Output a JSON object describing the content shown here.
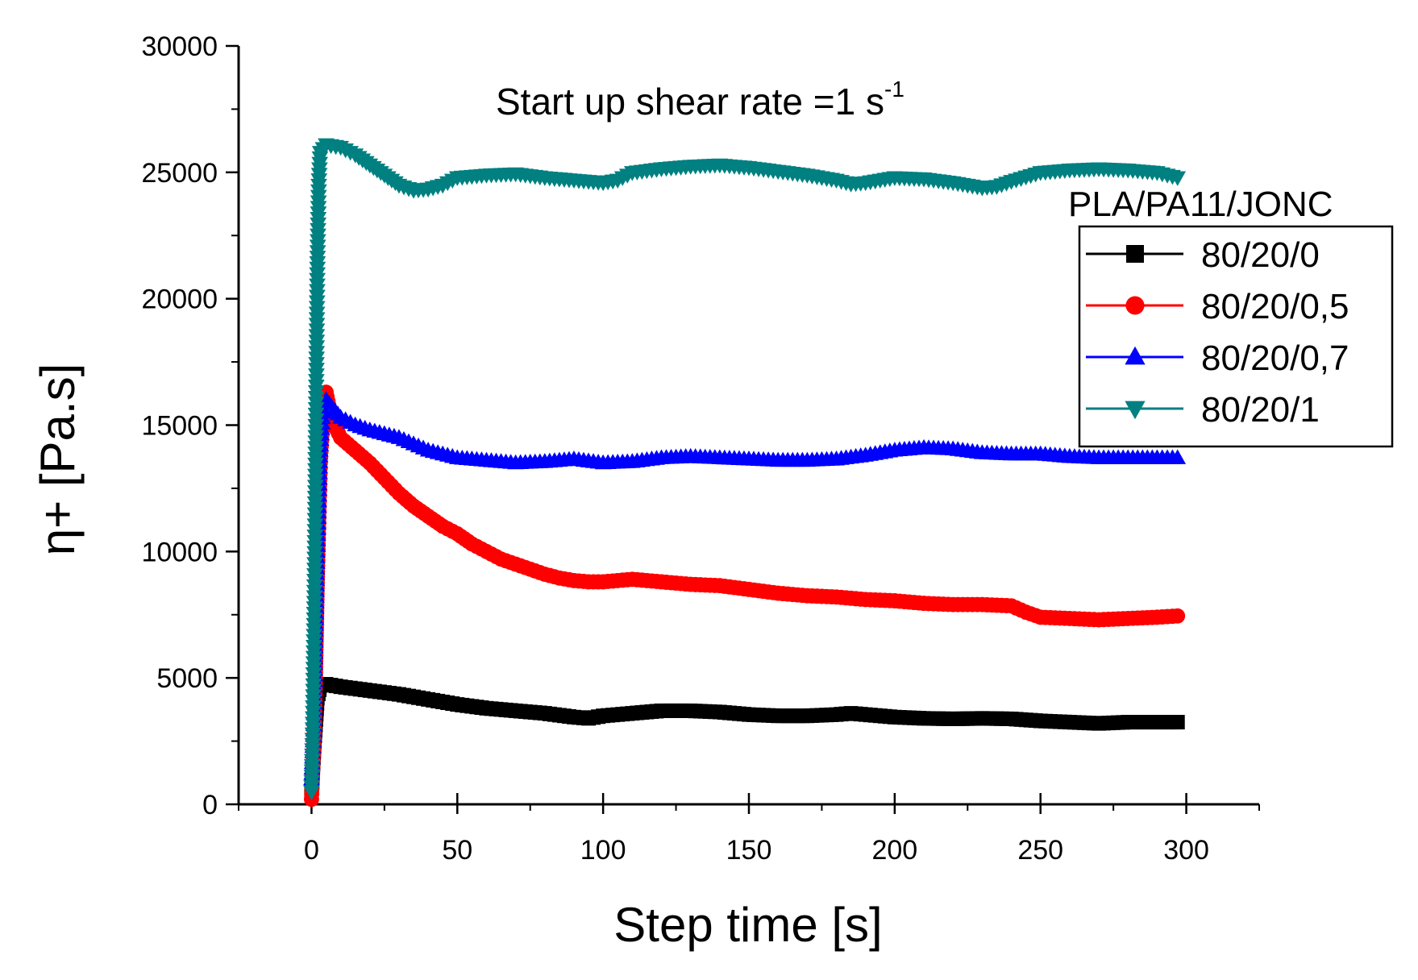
{
  "chart_data": {
    "type": "scatter",
    "title": "Start up shear rate =1 s",
    "title_superscript": "-1",
    "xlabel": "Step time [s]",
    "ylabel": "η+ [Pa.s]",
    "xlim": [
      -25,
      325
    ],
    "ylim": [
      0,
      30000
    ],
    "x_ticks": [
      0,
      50,
      100,
      150,
      200,
      250,
      300
    ],
    "y_ticks": [
      0,
      5000,
      10000,
      15000,
      20000,
      25000,
      30000
    ],
    "x_tick_labels": [
      "0",
      "50",
      "100",
      "150",
      "200",
      "250",
      "300"
    ],
    "y_tick_labels": [
      "0",
      "5000",
      "10000",
      "15000",
      "20000",
      "25000",
      "30000"
    ],
    "legend_title": "PLA/PA11/JONC",
    "legend_position": "top-right",
    "grid": false,
    "series": [
      {
        "name": "80/20/0",
        "color": "#000000",
        "marker": "square",
        "points": [
          [
            0,
            500
          ],
          [
            1,
            2500
          ],
          [
            2,
            4200
          ],
          [
            3,
            4700
          ],
          [
            5,
            4750
          ],
          [
            10,
            4650
          ],
          [
            20,
            4500
          ],
          [
            30,
            4350
          ],
          [
            40,
            4150
          ],
          [
            50,
            3950
          ],
          [
            60,
            3800
          ],
          [
            70,
            3700
          ],
          [
            80,
            3600
          ],
          [
            90,
            3450
          ],
          [
            95,
            3400
          ],
          [
            100,
            3500
          ],
          [
            110,
            3600
          ],
          [
            120,
            3700
          ],
          [
            130,
            3700
          ],
          [
            140,
            3650
          ],
          [
            150,
            3550
          ],
          [
            160,
            3500
          ],
          [
            170,
            3500
          ],
          [
            180,
            3550
          ],
          [
            185,
            3600
          ],
          [
            190,
            3550
          ],
          [
            200,
            3450
          ],
          [
            210,
            3400
          ],
          [
            220,
            3380
          ],
          [
            230,
            3400
          ],
          [
            240,
            3380
          ],
          [
            250,
            3300
          ],
          [
            260,
            3250
          ],
          [
            270,
            3200
          ],
          [
            280,
            3250
          ],
          [
            290,
            3250
          ],
          [
            297,
            3250
          ]
        ]
      },
      {
        "name": "80/20/0,5",
        "color": "#ff0000",
        "marker": "circle",
        "points": [
          [
            0,
            200
          ],
          [
            1,
            3000
          ],
          [
            2,
            9000
          ],
          [
            3,
            13500
          ],
          [
            4,
            15500
          ],
          [
            5,
            16300
          ],
          [
            7,
            15200
          ],
          [
            10,
            14500
          ],
          [
            15,
            14000
          ],
          [
            20,
            13500
          ],
          [
            25,
            12900
          ],
          [
            30,
            12300
          ],
          [
            35,
            11800
          ],
          [
            40,
            11400
          ],
          [
            45,
            11000
          ],
          [
            50,
            10700
          ],
          [
            55,
            10300
          ],
          [
            60,
            10000
          ],
          [
            65,
            9700
          ],
          [
            70,
            9500
          ],
          [
            75,
            9300
          ],
          [
            80,
            9100
          ],
          [
            85,
            8950
          ],
          [
            90,
            8850
          ],
          [
            95,
            8800
          ],
          [
            100,
            8800
          ],
          [
            110,
            8900
          ],
          [
            120,
            8800
          ],
          [
            130,
            8700
          ],
          [
            140,
            8650
          ],
          [
            150,
            8500
          ],
          [
            160,
            8350
          ],
          [
            170,
            8250
          ],
          [
            180,
            8200
          ],
          [
            190,
            8100
          ],
          [
            200,
            8050
          ],
          [
            210,
            7950
          ],
          [
            220,
            7900
          ],
          [
            230,
            7900
          ],
          [
            240,
            7850
          ],
          [
            245,
            7600
          ],
          [
            250,
            7400
          ],
          [
            260,
            7350
          ],
          [
            270,
            7300
          ],
          [
            280,
            7350
          ],
          [
            290,
            7400
          ],
          [
            297,
            7450
          ]
        ]
      },
      {
        "name": "80/20/0,7",
        "color": "#0000ff",
        "marker": "triangle-up",
        "points": [
          [
            0,
            1000
          ],
          [
            1,
            4000
          ],
          [
            2,
            10000
          ],
          [
            3,
            14000
          ],
          [
            4,
            15500
          ],
          [
            5,
            16000
          ],
          [
            7,
            15700
          ],
          [
            10,
            15300
          ],
          [
            15,
            15000
          ],
          [
            20,
            14800
          ],
          [
            30,
            14500
          ],
          [
            40,
            14000
          ],
          [
            50,
            13700
          ],
          [
            60,
            13600
          ],
          [
            70,
            13500
          ],
          [
            80,
            13550
          ],
          [
            90,
            13650
          ],
          [
            100,
            13500
          ],
          [
            110,
            13550
          ],
          [
            120,
            13700
          ],
          [
            130,
            13750
          ],
          [
            140,
            13700
          ],
          [
            150,
            13650
          ],
          [
            160,
            13600
          ],
          [
            170,
            13600
          ],
          [
            180,
            13650
          ],
          [
            190,
            13800
          ],
          [
            200,
            14000
          ],
          [
            210,
            14100
          ],
          [
            220,
            14050
          ],
          [
            230,
            13900
          ],
          [
            240,
            13850
          ],
          [
            250,
            13850
          ],
          [
            260,
            13750
          ],
          [
            270,
            13700
          ],
          [
            280,
            13700
          ],
          [
            290,
            13700
          ],
          [
            297,
            13700
          ]
        ]
      },
      {
        "name": "80/20/1",
        "color": "#008080",
        "marker": "triangle-down",
        "points": [
          [
            0,
            500
          ],
          [
            0.5,
            3000
          ],
          [
            1,
            8000
          ],
          [
            1.5,
            15000
          ],
          [
            2,
            21000
          ],
          [
            2.5,
            24500
          ],
          [
            3,
            25800
          ],
          [
            5,
            26100
          ],
          [
            10,
            26000
          ],
          [
            15,
            25700
          ],
          [
            20,
            25300
          ],
          [
            25,
            24900
          ],
          [
            30,
            24500
          ],
          [
            35,
            24300
          ],
          [
            40,
            24350
          ],
          [
            45,
            24500
          ],
          [
            50,
            24800
          ],
          [
            60,
            24900
          ],
          [
            70,
            24950
          ],
          [
            80,
            24800
          ],
          [
            90,
            24700
          ],
          [
            100,
            24600
          ],
          [
            105,
            24700
          ],
          [
            110,
            25000
          ],
          [
            120,
            25150
          ],
          [
            130,
            25250
          ],
          [
            140,
            25300
          ],
          [
            150,
            25200
          ],
          [
            160,
            25050
          ],
          [
            170,
            24900
          ],
          [
            180,
            24700
          ],
          [
            185,
            24550
          ],
          [
            190,
            24600
          ],
          [
            200,
            24800
          ],
          [
            210,
            24750
          ],
          [
            220,
            24600
          ],
          [
            230,
            24400
          ],
          [
            235,
            24450
          ],
          [
            240,
            24650
          ],
          [
            250,
            25000
          ],
          [
            260,
            25100
          ],
          [
            270,
            25150
          ],
          [
            280,
            25100
          ],
          [
            290,
            25000
          ],
          [
            297,
            24800
          ]
        ]
      }
    ]
  }
}
